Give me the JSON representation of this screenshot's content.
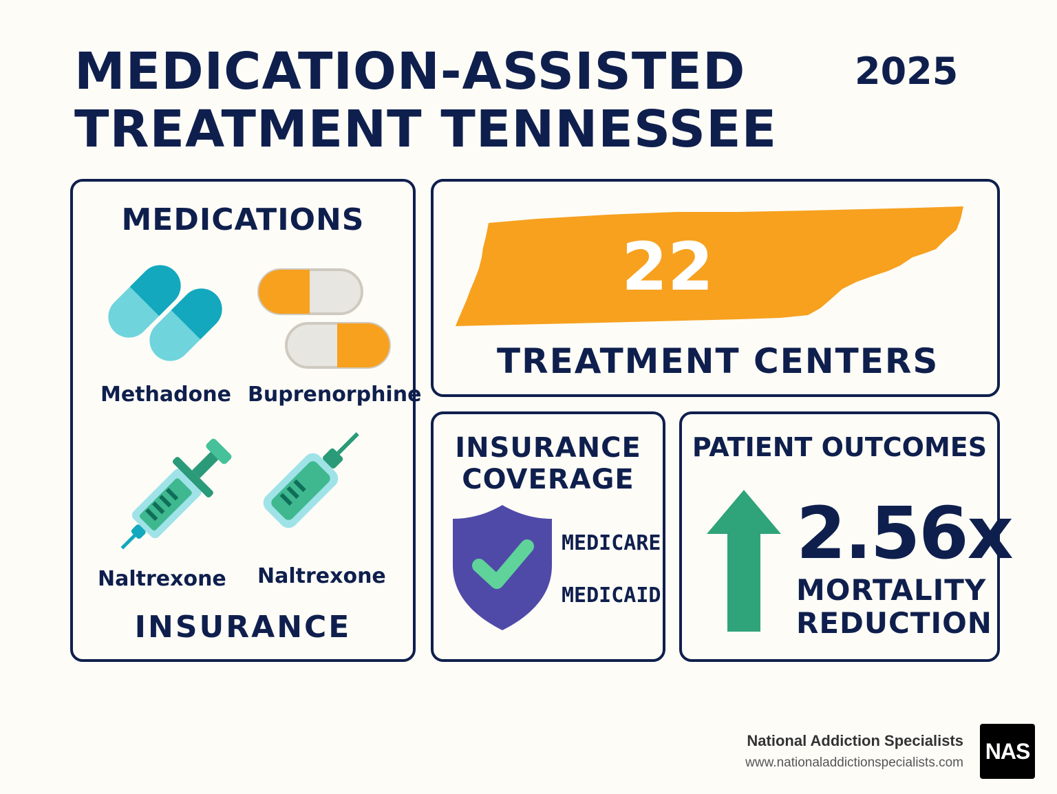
{
  "header": {
    "title_line1": "MEDICATION-ASSISTED",
    "title_line2": "TREATMENT TENNESSEE",
    "year": "2025"
  },
  "medications": {
    "title": "MEDICATIONS",
    "items": [
      {
        "label": "Methadone",
        "icon": "teal-pills-icon"
      },
      {
        "label": "Buprenorphine",
        "icon": "orange-capsules-icon"
      },
      {
        "label": "Naltrexone",
        "icon": "syringe-icon"
      },
      {
        "label": "Naltrexone",
        "icon": "injection-vial-icon"
      }
    ],
    "footer": "INSURANCE"
  },
  "treatment_centers": {
    "count": "22",
    "label": "TREATMENT CENTERS",
    "icon": "tennessee-map-icon"
  },
  "insurance": {
    "title_line1": "INSURANCE",
    "title_line2": "COVERAGE",
    "items": [
      "MEDICARE",
      "MEDICAID"
    ],
    "icon": "shield-check-icon"
  },
  "outcomes": {
    "title": "PATIENT OUTCOMES",
    "value": "2.56x",
    "label_line1": "MORTALITY",
    "label_line2": "REDUCTION",
    "icon": "up-arrow-icon"
  },
  "brand": {
    "name": "National Addiction Specialists",
    "url": "www.nationaladdictionspecialists.com",
    "logo_text": "NAS"
  },
  "colors": {
    "navy": "#0f1f4d",
    "orange": "#f7a11f",
    "teal": "#13a8bd",
    "green": "#2fa37a",
    "purple": "#4f4aa8"
  }
}
